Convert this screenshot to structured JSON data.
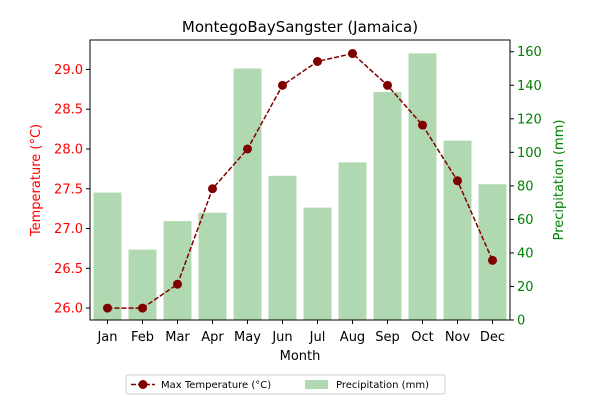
{
  "chart_data": {
    "type": "bar+line",
    "title": "MontegoBaySangster (Jamaica)",
    "xlabel": "Month",
    "categories": [
      "Jan",
      "Feb",
      "Mar",
      "Apr",
      "May",
      "Jun",
      "Jul",
      "Aug",
      "Sep",
      "Oct",
      "Nov",
      "Dec"
    ],
    "y_left": {
      "label": "Temperature (°C)",
      "range": [
        25.85,
        29.37
      ],
      "ticks": [
        26.0,
        26.5,
        27.0,
        27.5,
        28.0,
        28.5,
        29.0
      ],
      "tick_labels": [
        "26.0",
        "26.5",
        "27.0",
        "27.5",
        "28.0",
        "28.5",
        "29.0"
      ],
      "color": "#ff0000"
    },
    "y_right": {
      "label": "Precipitation (mm)",
      "range": [
        0,
        167
      ],
      "ticks": [
        0,
        20,
        40,
        60,
        80,
        100,
        120,
        140,
        160
      ],
      "tick_labels": [
        "0",
        "20",
        "40",
        "60",
        "80",
        "100",
        "120",
        "140",
        "160"
      ],
      "color": "#008000"
    },
    "series": [
      {
        "name": "Max Temperature (°C)",
        "kind": "line",
        "axis": "left",
        "color": "#800000",
        "values": [
          26.0,
          26.0,
          26.3,
          27.5,
          28.0,
          28.8,
          29.1,
          29.2,
          28.8,
          28.3,
          27.6,
          26.6
        ]
      },
      {
        "name": "Precipitation (mm)",
        "kind": "bar",
        "axis": "right",
        "color": "#b1d9b1",
        "values": [
          76,
          42,
          59,
          64,
          150,
          86,
          67,
          94,
          136,
          159,
          107,
          81
        ]
      }
    ],
    "legend_position": "bottom-center",
    "grid": false
  }
}
